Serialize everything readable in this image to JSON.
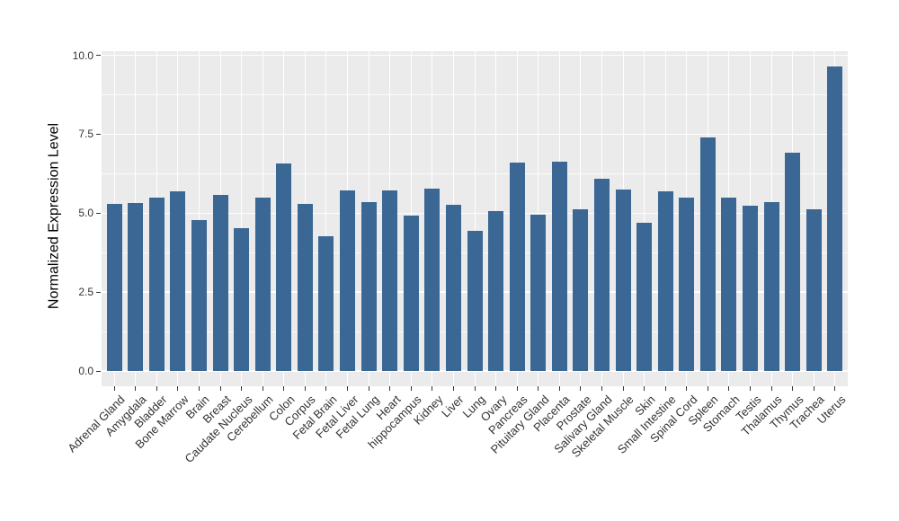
{
  "chart_data": {
    "type": "bar",
    "title": "",
    "xlabel": "",
    "ylabel": "Normalized Expression Level",
    "categories": [
      "Adrenal Gland",
      "Amygdala",
      "Bladder",
      "Bone Marrow",
      "Brain",
      "Breast",
      "Caudate Nucleus",
      "Cerebellum",
      "Colon",
      "Corpus",
      "Fetal Brain",
      "Fetal Liver",
      "Fetal Lung",
      "Heart",
      "hippocampus",
      "Kidney",
      "Liver",
      "Lung",
      "Ovary",
      "Pancreas",
      "Pituitary Gland",
      "Placenta",
      "Prostate",
      "Salivary Gland",
      "Skeletal Muscle",
      "Skin",
      "Small Intestine",
      "Spinal Cord",
      "Spleen",
      "Stomach",
      "Testis",
      "Thalamus",
      "Thymus",
      "Trachea",
      "Uterus"
    ],
    "values": [
      5.28,
      5.32,
      5.48,
      5.68,
      4.78,
      5.58,
      4.52,
      5.48,
      6.58,
      5.3,
      4.28,
      5.72,
      5.34,
      5.72,
      4.93,
      5.79,
      5.26,
      4.43,
      5.07,
      6.61,
      4.95,
      6.64,
      5.11,
      6.1,
      5.76,
      4.7,
      5.7,
      5.49,
      7.4,
      5.49,
      5.23,
      5.35,
      6.92,
      5.11,
      9.66
    ],
    "ylim": [
      0,
      10
    ],
    "y_ticks": [
      0,
      2.5,
      5,
      7.5,
      10
    ],
    "y_tick_labels": [
      "0.0",
      "2.5",
      "5.0",
      "7.5",
      "10.0"
    ],
    "y_minor_gridlines": [
      1.25,
      3.75,
      6.25,
      8.75
    ],
    "grid": true,
    "legend": false,
    "x_tick_angle_degrees": 45,
    "bar_color": "#3A6794",
    "panel_background": "#EBEBEB",
    "gridline_color": "#FFFFFF",
    "axis_text_color": "#333333",
    "axis_title_color": "#000000"
  }
}
